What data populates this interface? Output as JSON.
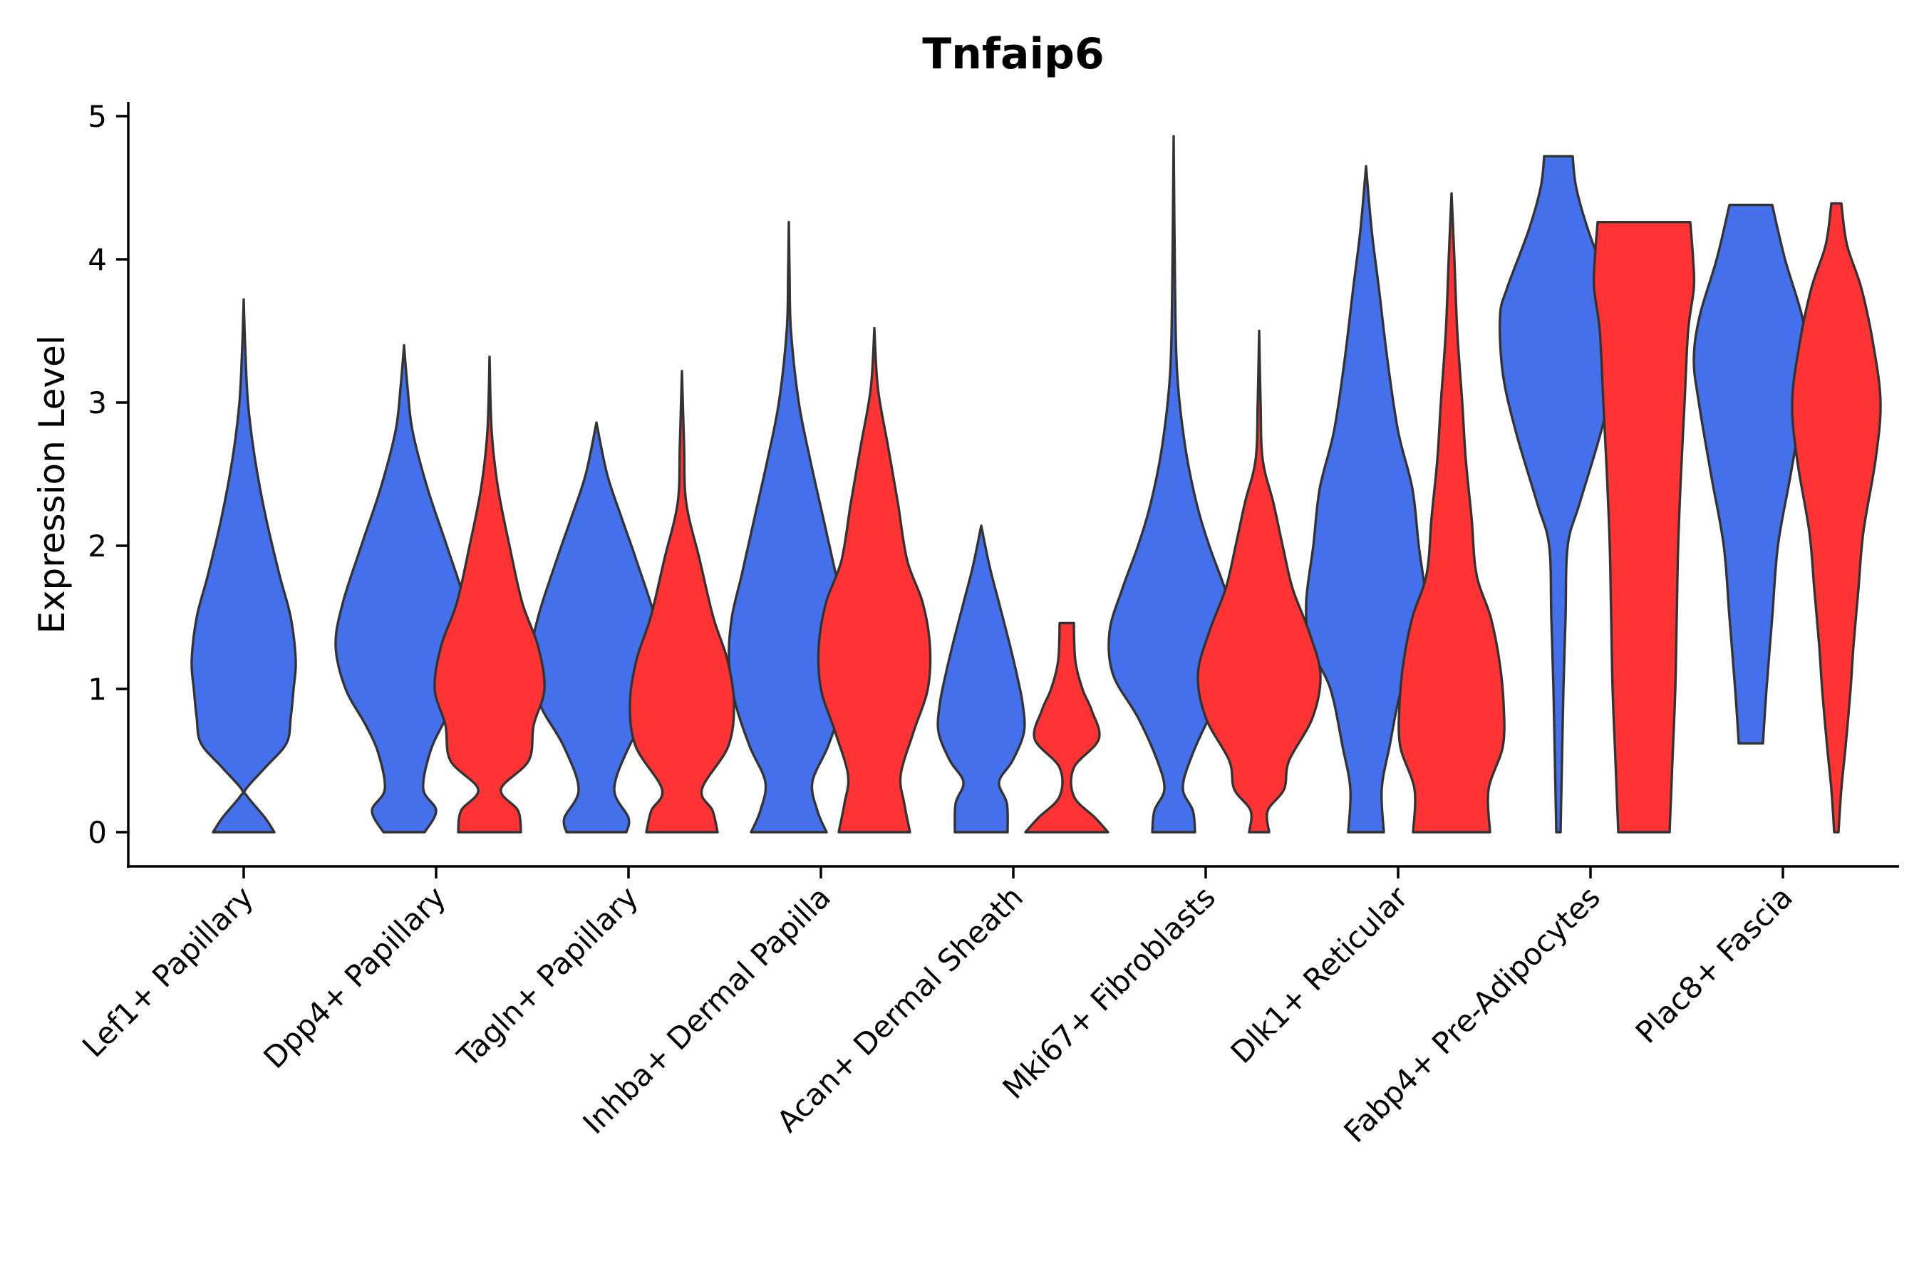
{
  "chart_data": {
    "type": "violin",
    "title": "Tnfaip6",
    "xlabel": "",
    "ylabel": "Expression Level",
    "ylim": [
      -0.24,
      5.1
    ],
    "yticks": [
      0,
      1,
      2,
      3,
      4,
      5
    ],
    "ytick_labels": [
      "0",
      "1",
      "2",
      "3",
      "4",
      "5"
    ],
    "legend": "none",
    "grid": false,
    "categories": [
      "Lef1+ Papillary",
      "Dpp4+ Papillary",
      "Tagln+ Papillary",
      "Inhba+ Dermal Papilla",
      "Acan+ Dermal Sheath",
      "Mki67+ Fibroblasts",
      "Dlk1+ Reticular",
      "Fabp4+ Pre-Adipocytes",
      "Plac8+ Fascia"
    ],
    "series": [
      {
        "name": "blue-group",
        "color": "#4570EB",
        "violins": [
          {
            "category": "Lef1+ Papillary",
            "max": 3.72,
            "profile": [
              [
                0,
                0.43
              ],
              [
                0.1,
                0.3
              ],
              [
                0.25,
                0.05
              ],
              [
                0.3,
                0.03
              ],
              [
                0.45,
                0.3
              ],
              [
                0.62,
                0.6
              ],
              [
                0.8,
                0.66
              ],
              [
                1.0,
                0.7
              ],
              [
                1.2,
                0.73
              ],
              [
                1.5,
                0.66
              ],
              [
                1.8,
                0.5
              ],
              [
                2.2,
                0.31
              ],
              [
                2.6,
                0.16
              ],
              [
                3.0,
                0.06
              ],
              [
                3.4,
                0.02
              ],
              [
                3.72,
                0
              ]
            ]
          },
          {
            "category": "Dpp4+ Papillary",
            "max": 3.4,
            "profile": [
              [
                0,
                0.29
              ],
              [
                0.15,
                0.45
              ],
              [
                0.3,
                0.27
              ],
              [
                0.55,
                0.36
              ],
              [
                0.75,
                0.54
              ],
              [
                1.0,
                0.82
              ],
              [
                1.3,
                0.96
              ],
              [
                1.6,
                0.86
              ],
              [
                2.0,
                0.6
              ],
              [
                2.4,
                0.33
              ],
              [
                2.8,
                0.12
              ],
              [
                3.1,
                0.05
              ],
              [
                3.4,
                0
              ]
            ]
          },
          {
            "category": "Tagln+ Papillary",
            "max": 2.86,
            "profile": [
              [
                0,
                0.42
              ],
              [
                0.1,
                0.45
              ],
              [
                0.3,
                0.25
              ],
              [
                0.6,
                0.46
              ],
              [
                0.9,
                0.8
              ],
              [
                1.2,
                0.92
              ],
              [
                1.5,
                0.82
              ],
              [
                1.9,
                0.56
              ],
              [
                2.2,
                0.35
              ],
              [
                2.5,
                0.15
              ],
              [
                2.86,
                0
              ]
            ]
          },
          {
            "category": "Inhba+ Dermal Papilla",
            "max": 4.26,
            "profile": [
              [
                0,
                0.53
              ],
              [
                0.15,
                0.4
              ],
              [
                0.35,
                0.33
              ],
              [
                0.6,
                0.55
              ],
              [
                0.9,
                0.75
              ],
              [
                1.2,
                0.84
              ],
              [
                1.5,
                0.8
              ],
              [
                1.8,
                0.66
              ],
              [
                2.2,
                0.48
              ],
              [
                2.6,
                0.3
              ],
              [
                3.0,
                0.14
              ],
              [
                3.5,
                0.03
              ],
              [
                3.9,
                0.01
              ],
              [
                4.26,
                0
              ]
            ]
          },
          {
            "category": "Acan+ Dermal Sheath",
            "max": 2.14,
            "profile": [
              [
                0,
                0.37
              ],
              [
                0.2,
                0.36
              ],
              [
                0.35,
                0.25
              ],
              [
                0.5,
                0.44
              ],
              [
                0.7,
                0.6
              ],
              [
                0.9,
                0.58
              ],
              [
                1.1,
                0.5
              ],
              [
                1.35,
                0.38
              ],
              [
                1.6,
                0.25
              ],
              [
                1.85,
                0.12
              ],
              [
                2.14,
                0
              ]
            ]
          },
          {
            "category": "Mki67+ Fibroblasts",
            "max": 4.86,
            "profile": [
              [
                0,
                0.3
              ],
              [
                0.15,
                0.27
              ],
              [
                0.3,
                0.13
              ],
              [
                0.5,
                0.23
              ],
              [
                0.8,
                0.5
              ],
              [
                1.1,
                0.85
              ],
              [
                1.4,
                0.9
              ],
              [
                1.7,
                0.72
              ],
              [
                2.0,
                0.5
              ],
              [
                2.3,
                0.32
              ],
              [
                2.7,
                0.16
              ],
              [
                3.2,
                0.05
              ],
              [
                3.8,
                0.02
              ],
              [
                4.86,
                0
              ]
            ]
          },
          {
            "category": "Dlk1+ Reticular",
            "max": 4.65,
            "profile": [
              [
                0,
                0.25
              ],
              [
                0.3,
                0.22
              ],
              [
                0.6,
                0.33
              ],
              [
                1.0,
                0.5
              ],
              [
                1.3,
                0.78
              ],
              [
                1.6,
                0.84
              ],
              [
                2.0,
                0.74
              ],
              [
                2.4,
                0.65
              ],
              [
                2.8,
                0.45
              ],
              [
                3.3,
                0.3
              ],
              [
                3.8,
                0.18
              ],
              [
                4.2,
                0.08
              ],
              [
                4.65,
                0
              ]
            ]
          },
          {
            "category": "Fabp4+ Pre-Adipocytes",
            "max": 4.72,
            "profile": [
              [
                0,
                0.03
              ],
              [
                0.5,
                0.05
              ],
              [
                1.0,
                0.07
              ],
              [
                1.5,
                0.1
              ],
              [
                2.0,
                0.13
              ],
              [
                2.3,
                0.3
              ],
              [
                2.8,
                0.6
              ],
              [
                3.2,
                0.78
              ],
              [
                3.6,
                0.82
              ],
              [
                3.8,
                0.72
              ],
              [
                4.2,
                0.42
              ],
              [
                4.5,
                0.25
              ],
              [
                4.72,
                0.2
              ]
            ]
          },
          {
            "category": "Plac8+ Fascia",
            "max": 4.38,
            "profile": [
              [
                0.62,
                0.17
              ],
              [
                1.0,
                0.22
              ],
              [
                1.5,
                0.3
              ],
              [
                2.0,
                0.38
              ],
              [
                2.5,
                0.56
              ],
              [
                3.0,
                0.73
              ],
              [
                3.3,
                0.8
              ],
              [
                3.6,
                0.72
              ],
              [
                4.0,
                0.48
              ],
              [
                4.38,
                0.3
              ]
            ]
          }
        ]
      },
      {
        "name": "red-group",
        "color": "#FF3333",
        "violins": [
          {
            "category": "Dpp4+ Papillary",
            "max": 3.32,
            "profile": [
              [
                0,
                0.44
              ],
              [
                0.15,
                0.4
              ],
              [
                0.3,
                0.16
              ],
              [
                0.5,
                0.55
              ],
              [
                0.75,
                0.62
              ],
              [
                1.0,
                0.77
              ],
              [
                1.3,
                0.68
              ],
              [
                1.6,
                0.46
              ],
              [
                2.0,
                0.28
              ],
              [
                2.4,
                0.12
              ],
              [
                2.8,
                0.03
              ],
              [
                3.32,
                0
              ]
            ]
          },
          {
            "category": "Tagln+ Papillary",
            "max": 3.22,
            "profile": [
              [
                0,
                0.5
              ],
              [
                0.15,
                0.43
              ],
              [
                0.3,
                0.28
              ],
              [
                0.6,
                0.65
              ],
              [
                0.9,
                0.73
              ],
              [
                1.2,
                0.64
              ],
              [
                1.5,
                0.44
              ],
              [
                1.9,
                0.25
              ],
              [
                2.3,
                0.06
              ],
              [
                2.7,
                0.03
              ],
              [
                3.22,
                0
              ]
            ]
          },
          {
            "category": "Inhba+ Dermal Papilla",
            "max": 3.52,
            "profile": [
              [
                0,
                0.5
              ],
              [
                0.2,
                0.42
              ],
              [
                0.4,
                0.37
              ],
              [
                0.7,
                0.55
              ],
              [
                1.0,
                0.75
              ],
              [
                1.3,
                0.78
              ],
              [
                1.6,
                0.68
              ],
              [
                1.9,
                0.46
              ],
              [
                2.3,
                0.33
              ],
              [
                2.7,
                0.19
              ],
              [
                3.1,
                0.05
              ],
              [
                3.52,
                0
              ]
            ]
          },
          {
            "category": "Acan+ Dermal Sheath",
            "max": 1.46,
            "profile": [
              [
                0,
                0.58
              ],
              [
                0.1,
                0.4
              ],
              [
                0.25,
                0.1
              ],
              [
                0.45,
                0.1
              ],
              [
                0.65,
                0.45
              ],
              [
                0.85,
                0.35
              ],
              [
                1.0,
                0.22
              ],
              [
                1.2,
                0.12
              ],
              [
                1.46,
                0.1
              ]
            ]
          },
          {
            "category": "Mki67+ Fibroblasts",
            "max": 3.5,
            "profile": [
              [
                0,
                0.14
              ],
              [
                0.15,
                0.12
              ],
              [
                0.3,
                0.35
              ],
              [
                0.5,
                0.42
              ],
              [
                0.8,
                0.75
              ],
              [
                1.1,
                0.86
              ],
              [
                1.4,
                0.7
              ],
              [
                1.7,
                0.47
              ],
              [
                2.0,
                0.33
              ],
              [
                2.3,
                0.2
              ],
              [
                2.6,
                0.05
              ],
              [
                3.0,
                0.02
              ],
              [
                3.5,
                0
              ]
            ]
          },
          {
            "category": "Dlk1+ Reticular",
            "max": 4.46,
            "profile": [
              [
                0,
                0.54
              ],
              [
                0.3,
                0.52
              ],
              [
                0.6,
                0.72
              ],
              [
                0.9,
                0.73
              ],
              [
                1.2,
                0.67
              ],
              [
                1.5,
                0.55
              ],
              [
                1.8,
                0.35
              ],
              [
                2.2,
                0.28
              ],
              [
                2.6,
                0.2
              ],
              [
                3.0,
                0.15
              ],
              [
                3.5,
                0.08
              ],
              [
                4.0,
                0.04
              ],
              [
                4.46,
                0
              ]
            ]
          },
          {
            "category": "Fabp4+ Pre-Adipocytes",
            "max": 4.26,
            "profile": [
              [
                0,
                0.36
              ],
              [
                0.5,
                0.4
              ],
              [
                1.0,
                0.44
              ],
              [
                1.5,
                0.46
              ],
              [
                2.0,
                0.48
              ],
              [
                2.5,
                0.52
              ],
              [
                3.0,
                0.57
              ],
              [
                3.5,
                0.62
              ],
              [
                3.8,
                0.7
              ],
              [
                4.0,
                0.69
              ],
              [
                4.26,
                0.65
              ]
            ]
          },
          {
            "category": "Plac8+ Fascia",
            "max": 4.39,
            "profile": [
              [
                0,
                0.03
              ],
              [
                0.3,
                0.07
              ],
              [
                0.6,
                0.13
              ],
              [
                1.0,
                0.2
              ],
              [
                1.3,
                0.24
              ],
              [
                1.7,
                0.31
              ],
              [
                2.1,
                0.38
              ],
              [
                2.6,
                0.55
              ],
              [
                3.0,
                0.62
              ],
              [
                3.4,
                0.52
              ],
              [
                3.8,
                0.35
              ],
              [
                4.1,
                0.15
              ],
              [
                4.39,
                0.07
              ]
            ]
          }
        ]
      }
    ]
  }
}
